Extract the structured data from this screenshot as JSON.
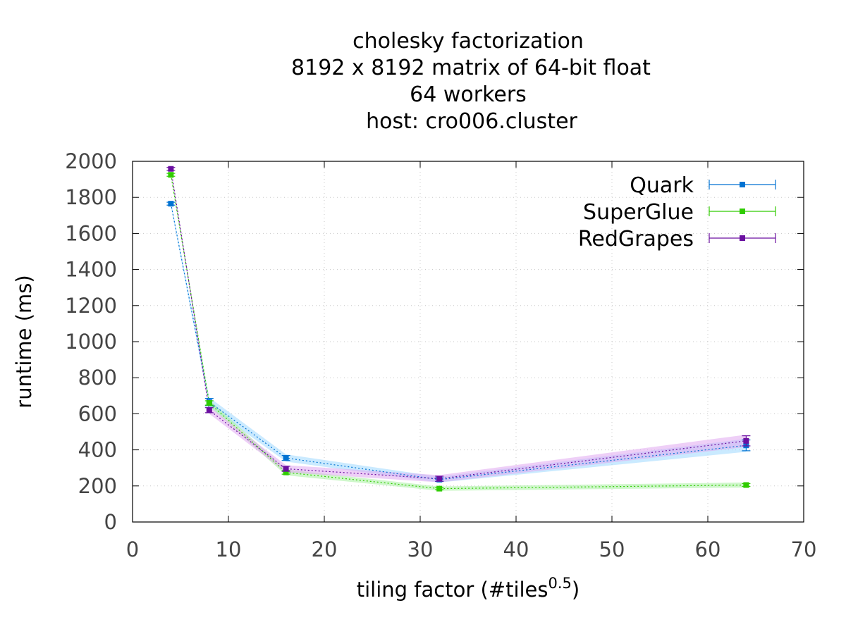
{
  "chart_data": {
    "type": "line",
    "title": [
      "cholesky factorization",
      "8192 x 8192 matrix of 64-bit float",
      "64 workers",
      "host: cro006.cluster"
    ],
    "xlabel": "tiling factor (#tiles",
    "xlabel_sup": "0.5",
    "xlabel_end": ")",
    "ylabel": "runtime (ms)",
    "xlim": [
      0,
      70
    ],
    "ylim": [
      0,
      2000
    ],
    "xticks": [
      0,
      10,
      20,
      30,
      40,
      50,
      60,
      70
    ],
    "yticks": [
      0,
      200,
      400,
      600,
      800,
      1000,
      1200,
      1400,
      1600,
      1800,
      2000
    ],
    "grid": true,
    "legend_position": "top-right",
    "x": [
      4,
      8,
      16,
      32,
      64
    ],
    "series": [
      {
        "name": "Quark",
        "color": "#0072d2",
        "band": "#9fd8ff",
        "values": [
          1765,
          665,
          355,
          235,
          425
        ],
        "err": [
          8,
          20,
          14,
          10,
          30
        ]
      },
      {
        "name": "SuperGlue",
        "color": "#30cc00",
        "band": "#a8f0a0",
        "values": [
          1925,
          660,
          275,
          185,
          205
        ],
        "err": [
          8,
          12,
          10,
          6,
          8
        ]
      },
      {
        "name": "RedGrapes",
        "color": "#6a0fa0",
        "band": "#e0a8f0",
        "values": [
          1958,
          620,
          295,
          240,
          450
        ],
        "err": [
          8,
          14,
          14,
          14,
          28
        ]
      }
    ]
  }
}
